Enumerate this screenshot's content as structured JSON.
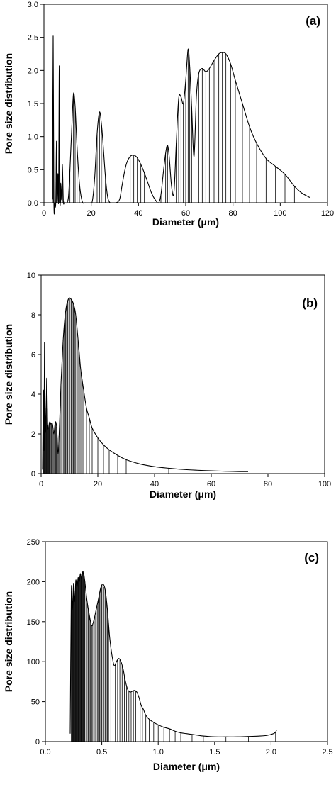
{
  "chart_data": [
    {
      "type": "line",
      "panel_label": "(a)",
      "xlabel": "Diameter (μm)",
      "ylabel": "Pore size distribution",
      "xlim": [
        0,
        120
      ],
      "ylim": [
        0,
        3.0
      ],
      "xticks": [
        0,
        20,
        40,
        60,
        80,
        100,
        120
      ],
      "xtick_labels": [
        "0",
        "20",
        "40",
        "60",
        "80",
        "100",
        "120"
      ],
      "yticks": [
        0,
        0.5,
        1.0,
        1.5,
        2.0,
        2.5,
        3.0
      ],
      "ytick_labels": [
        "0.0",
        "0.5",
        "1.0",
        "1.5",
        "2.0",
        "2.5",
        "3.0"
      ],
      "grid": false,
      "series": [
        {
          "x": [
            3.6,
            3.9,
            4.2,
            4.6,
            5.0,
            5.3,
            5.6,
            5.9,
            6.2,
            6.5,
            6.8,
            7.1,
            7.5,
            7.8,
            8.2,
            8.6,
            9.0,
            9.4,
            9.8,
            10.4,
            11.0,
            11.8,
            12.5,
            13.2,
            14.0,
            15.0,
            16.2,
            17.5,
            18.5,
            19.5,
            20.5,
            21.5,
            22.5,
            23.5,
            24.3,
            25.0,
            26.0,
            27.0,
            28.0,
            29.0,
            30.5,
            32.0,
            33.0,
            34.0,
            35.0,
            36.5,
            38.0,
            39.5,
            41.0,
            42.5,
            44.0,
            45.5,
            47.0,
            48.5,
            49.5,
            50.5,
            51.5,
            52.3,
            53.0,
            54.0,
            55.0,
            56.0,
            57.0,
            58.0,
            59.0,
            60.0,
            61.0,
            61.7,
            62.5,
            63.5,
            64.5,
            65.5,
            67.0,
            68.5,
            70.0,
            72.0,
            74.0,
            75.5,
            77.0,
            79.0,
            81.0,
            84.0,
            87.0,
            90.0,
            94.0,
            98.0,
            102.0,
            106.0,
            109.0,
            112.5
          ],
          "y": [
            0.05,
            2.52,
            0.02,
            0.0,
            0.0,
            0.93,
            0.02,
            0.44,
            0.05,
            2.07,
            0.05,
            0.3,
            0.05,
            0.58,
            0.03,
            0.0,
            0.0,
            0.0,
            0.0,
            0.1,
            0.5,
            1.15,
            1.65,
            1.45,
            0.85,
            0.3,
            0.02,
            0.0,
            0.0,
            0.0,
            0.03,
            0.4,
            1.05,
            1.37,
            1.2,
            0.9,
            0.4,
            0.08,
            0.0,
            0.0,
            0.0,
            0.05,
            0.25,
            0.45,
            0.6,
            0.7,
            0.72,
            0.68,
            0.58,
            0.45,
            0.3,
            0.15,
            0.05,
            0.0,
            0.12,
            0.45,
            0.75,
            0.87,
            0.7,
            0.25,
            0.15,
            0.9,
            1.57,
            1.6,
            1.5,
            1.85,
            2.32,
            2.05,
            1.45,
            0.7,
            1.6,
            1.95,
            2.03,
            1.98,
            2.03,
            2.15,
            2.25,
            2.27,
            2.25,
            2.1,
            1.85,
            1.5,
            1.15,
            0.9,
            0.67,
            0.55,
            0.43,
            0.25,
            0.15,
            0.08
          ],
          "drop_lines_x": [
            3.9,
            5.3,
            6.2,
            6.5,
            7.1,
            7.8,
            8.4,
            11.0,
            12.5,
            13.2,
            14.0,
            15.0,
            22.5,
            23.5,
            24.3,
            25.0,
            26.0,
            36.5,
            38.0,
            39.5,
            41.0,
            42.5,
            49.5,
            51.5,
            52.3,
            53.0,
            56.0,
            57.0,
            58.0,
            59.0,
            60.0,
            61.0,
            61.7,
            62.5,
            65.5,
            67.0,
            68.5,
            70.0,
            72.0,
            74.0,
            75.5,
            77.0,
            79.0,
            81.0,
            84.0,
            87.0,
            90.0,
            94.0,
            98.0,
            102.0,
            106.0
          ]
        }
      ]
    },
    {
      "type": "line",
      "panel_label": "(b)",
      "xlabel": "Diameter (μm)",
      "ylabel": "Pore size distribution",
      "xlim": [
        0,
        100
      ],
      "ylim": [
        0,
        10
      ],
      "xticks": [
        0,
        20,
        40,
        60,
        80,
        100
      ],
      "xtick_labels": [
        "0",
        "20",
        "40",
        "60",
        "80",
        "100"
      ],
      "yticks": [
        0,
        2,
        4,
        6,
        8,
        10
      ],
      "ytick_labels": [
        "0",
        "2",
        "4",
        "6",
        "8",
        "10"
      ],
      "grid": false,
      "series": [
        {
          "x": [
            0.5,
            0.8,
            1.0,
            1.2,
            1.5,
            1.8,
            2.0,
            2.3,
            2.6,
            3.0,
            3.5,
            4.0,
            4.5,
            5.0,
            5.5,
            6.0,
            6.5,
            7.0,
            7.5,
            8.0,
            8.5,
            9.0,
            9.5,
            10.0,
            10.5,
            11.0,
            11.5,
            12.0,
            12.5,
            13.0,
            13.5,
            14.0,
            15.0,
            16.0,
            17.0,
            18.0,
            20.0,
            22.0,
            24.0,
            27.0,
            30.0,
            35.0,
            40.0,
            45.0,
            50.0,
            55.0,
            60.0,
            65.0,
            70.0,
            73.0
          ],
          "y": [
            0.2,
            4.2,
            1.2,
            6.6,
            2.2,
            3.3,
            4.8,
            2.5,
            2.3,
            2.6,
            2.5,
            2.5,
            2.0,
            2.6,
            2.3,
            1.0,
            2.5,
            4.5,
            6.0,
            7.2,
            8.0,
            8.5,
            8.75,
            8.85,
            8.8,
            8.7,
            8.5,
            8.2,
            7.6,
            6.8,
            6.0,
            5.2,
            4.2,
            3.3,
            2.8,
            2.3,
            1.8,
            1.45,
            1.2,
            0.92,
            0.7,
            0.48,
            0.35,
            0.27,
            0.21,
            0.17,
            0.14,
            0.12,
            0.1,
            0.1
          ],
          "drop_lines_x": [
            0.6,
            0.8,
            1.0,
            1.2,
            1.4,
            1.6,
            1.8,
            2.0,
            2.2,
            2.4,
            2.6,
            2.8,
            3.0,
            3.3,
            3.6,
            3.9,
            4.2,
            4.5,
            4.8,
            5.1,
            5.4,
            5.7,
            6.0,
            6.3,
            6.6,
            7.0,
            7.4,
            7.8,
            8.2,
            8.6,
            9.0,
            9.4,
            9.8,
            10.2,
            10.6,
            11.0,
            11.4,
            11.8,
            12.2,
            12.6,
            13.0,
            13.5,
            14.0,
            14.5,
            15.0,
            16.0,
            17.0,
            18.0,
            20.0,
            22.0,
            24.0,
            27.0,
            30.0,
            45.0
          ]
        }
      ]
    },
    {
      "type": "line",
      "panel_label": "(c)",
      "xlabel": "Diameter (μm)",
      "ylabel": "Pore size distribution",
      "xlim": [
        0.0,
        2.5
      ],
      "ylim": [
        0,
        250
      ],
      "xticks": [
        0.0,
        0.5,
        1.0,
        1.5,
        2.0,
        2.5
      ],
      "xtick_labels": [
        "0.0",
        "0.5",
        "1.0",
        "1.5",
        "2.0",
        "2.5"
      ],
      "yticks": [
        0,
        50,
        100,
        150,
        200,
        250
      ],
      "ytick_labels": [
        "0",
        "50",
        "100",
        "150",
        "200",
        "250"
      ],
      "grid": false,
      "series": [
        {
          "x": [
            0.22,
            0.23,
            0.24,
            0.25,
            0.26,
            0.27,
            0.28,
            0.29,
            0.3,
            0.31,
            0.32,
            0.33,
            0.34,
            0.35,
            0.37,
            0.39,
            0.41,
            0.43,
            0.45,
            0.47,
            0.49,
            0.51,
            0.53,
            0.55,
            0.57,
            0.59,
            0.61,
            0.63,
            0.65,
            0.67,
            0.69,
            0.71,
            0.73,
            0.75,
            0.77,
            0.79,
            0.81,
            0.83,
            0.85,
            0.87,
            0.89,
            0.92,
            0.96,
            1.0,
            1.05,
            1.1,
            1.15,
            1.2,
            1.25,
            1.3,
            1.35,
            1.4,
            1.5,
            1.6,
            1.7,
            1.8,
            1.9,
            1.97,
            2.02,
            2.04,
            2.05
          ],
          "y": [
            10,
            188,
            165,
            198,
            175,
            202,
            190,
            205,
            200,
            210,
            204,
            212,
            210,
            200,
            175,
            158,
            145,
            152,
            165,
            178,
            192,
            197,
            190,
            165,
            130,
            108,
            95,
            100,
            104,
            100,
            90,
            75,
            65,
            62,
            63,
            64,
            62,
            55,
            45,
            40,
            33,
            28,
            24,
            21,
            18,
            16,
            13,
            11,
            10,
            9,
            8,
            7,
            6,
            6,
            6,
            6.5,
            7,
            8,
            10,
            12,
            15
          ],
          "drop_lines_x": [
            0.23,
            0.235,
            0.24,
            0.245,
            0.25,
            0.255,
            0.26,
            0.265,
            0.27,
            0.275,
            0.28,
            0.285,
            0.29,
            0.295,
            0.3,
            0.305,
            0.31,
            0.315,
            0.32,
            0.325,
            0.33,
            0.335,
            0.34,
            0.345,
            0.35,
            0.36,
            0.37,
            0.38,
            0.39,
            0.4,
            0.41,
            0.42,
            0.43,
            0.44,
            0.45,
            0.46,
            0.47,
            0.48,
            0.49,
            0.5,
            0.51,
            0.52,
            0.53,
            0.54,
            0.55,
            0.56,
            0.58,
            0.6,
            0.62,
            0.64,
            0.66,
            0.68,
            0.7,
            0.72,
            0.74,
            0.76,
            0.78,
            0.8,
            0.82,
            0.84,
            0.86,
            0.89,
            0.92,
            0.96,
            1.0,
            1.05,
            1.1,
            1.15,
            1.2,
            1.3,
            1.4,
            1.6,
            1.8,
            2.0,
            2.04
          ]
        }
      ]
    }
  ]
}
